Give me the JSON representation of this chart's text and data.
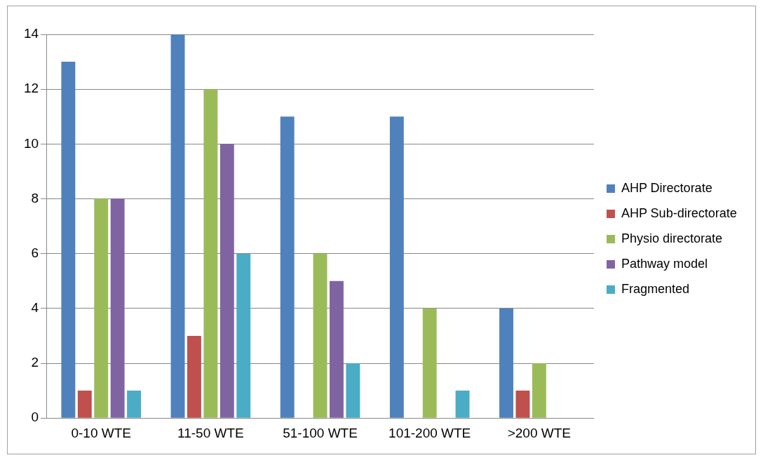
{
  "chart_data": {
    "type": "bar",
    "categories": [
      "0-10 WTE",
      "11-50 WTE",
      "51-100 WTE",
      "101-200 WTE",
      ">200 WTE"
    ],
    "series": [
      {
        "name": "AHP Directorate",
        "color": "#4f81bd",
        "values": [
          13,
          14,
          11,
          11,
          4
        ]
      },
      {
        "name": "AHP Sub-directorate",
        "color": "#c0504d",
        "values": [
          1,
          3,
          0,
          0,
          1
        ]
      },
      {
        "name": "Physio directorate",
        "color": "#9bbb59",
        "values": [
          8,
          12,
          6,
          4,
          2
        ]
      },
      {
        "name": "Pathway model",
        "color": "#8064a2",
        "values": [
          8,
          10,
          5,
          0,
          0
        ]
      },
      {
        "name": "Fragmented",
        "color": "#4bacc6",
        "values": [
          1,
          6,
          2,
          1,
          0
        ]
      }
    ],
    "ylim": [
      0,
      14
    ],
    "yticks": [
      0,
      2,
      4,
      6,
      8,
      10,
      12,
      14
    ],
    "grid": "y",
    "legend": "right"
  }
}
